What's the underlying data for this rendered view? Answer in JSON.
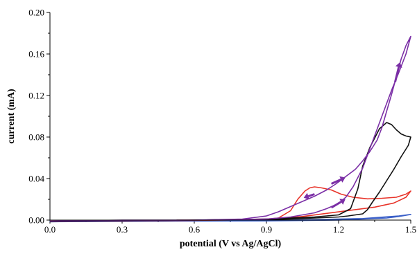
{
  "chart_data": {
    "type": "line",
    "title": "",
    "xlabel": "potential (V vs Ag/AgCl)",
    "ylabel": "current (mA)",
    "xlim": [
      0.0,
      1.5
    ],
    "ylim": [
      0.0,
      0.2
    ],
    "x_ticks": [
      "0.0",
      "0.3",
      "0.6",
      "0.9",
      "1.2",
      "1.5"
    ],
    "y_ticks": [
      "0.00",
      "0.04",
      "0.08",
      "0.12",
      "0.16",
      "0.20"
    ],
    "grid": false,
    "legend": "none",
    "series": [
      {
        "color": "#3a5fc8",
        "x": [
          0.0,
          0.3,
          0.6,
          0.9,
          1.2,
          1.3,
          1.4,
          1.45,
          1.5,
          1.45,
          1.3,
          1.0,
          0.6,
          0.3,
          0.0,
          0.0
        ],
        "y": [
          -0.0015,
          -0.0012,
          -0.001,
          -0.0008,
          0.0,
          0.001,
          0.002,
          0.0035,
          0.0055,
          0.004,
          0.0015,
          0.0,
          -0.0005,
          -0.0008,
          -0.0012,
          -0.0015
        ]
      },
      {
        "color": "#e8342a",
        "x": [
          0.0,
          0.3,
          0.6,
          0.9,
          0.95,
          1.0,
          1.03,
          1.06,
          1.08,
          1.1,
          1.13,
          1.17,
          1.21,
          1.26,
          1.32,
          1.38,
          1.44,
          1.48,
          1.5,
          1.48,
          1.43,
          1.35,
          1.25,
          1.15,
          1.05,
          0.95,
          0.85,
          0.7,
          0.5,
          0.3,
          0.0
        ],
        "y": [
          -0.001,
          -0.0005,
          0.0,
          0.001,
          0.002,
          0.009,
          0.02,
          0.028,
          0.031,
          0.032,
          0.031,
          0.029,
          0.025,
          0.022,
          0.0205,
          0.021,
          0.022,
          0.025,
          0.028,
          0.022,
          0.0165,
          0.0125,
          0.0095,
          0.0065,
          0.0035,
          0.0015,
          0.0005,
          0.0,
          -0.0005,
          -0.001,
          -0.001
        ]
      },
      {
        "color": "#111111",
        "x": [
          0.0,
          0.3,
          0.6,
          0.9,
          1.0,
          1.1,
          1.2,
          1.25,
          1.28,
          1.3,
          1.33,
          1.37,
          1.4,
          1.42,
          1.44,
          1.46,
          1.48,
          1.5,
          1.49,
          1.46,
          1.43,
          1.4,
          1.37,
          1.34,
          1.32,
          1.3,
          1.27,
          1.24,
          1.2,
          1.1,
          1.0,
          0.9,
          0.6,
          0.3,
          0.0
        ],
        "y": [
          -0.0015,
          -0.001,
          0.0,
          0.001,
          0.002,
          0.003,
          0.005,
          0.011,
          0.03,
          0.052,
          0.07,
          0.088,
          0.094,
          0.092,
          0.087,
          0.083,
          0.081,
          0.08,
          0.072,
          0.061,
          0.049,
          0.038,
          0.027,
          0.017,
          0.01,
          0.006,
          0.005,
          0.004,
          0.003,
          0.002,
          0.001,
          0.0005,
          0.0,
          -0.0005,
          -0.0015
        ]
      },
      {
        "color": "#7b2fa6",
        "x": [
          0.0,
          0.3,
          0.6,
          0.9,
          1.0,
          1.1,
          1.15,
          1.2,
          1.23,
          1.26,
          1.3,
          1.34,
          1.38,
          1.42,
          1.45,
          1.48,
          1.5,
          1.48,
          1.46,
          1.44,
          1.42,
          1.4,
          1.38,
          1.36,
          1.33,
          1.3,
          1.27,
          1.23,
          1.19,
          1.15,
          1.1,
          1.05,
          1.0,
          0.95,
          0.9,
          0.8,
          0.6,
          0.3,
          0.0
        ],
        "y": [
          -0.001,
          0.0,
          0.0,
          0.001,
          0.003,
          0.007,
          0.011,
          0.016,
          0.022,
          0.032,
          0.05,
          0.075,
          0.1,
          0.125,
          0.142,
          0.16,
          0.177,
          0.168,
          0.155,
          0.138,
          0.121,
          0.105,
          0.089,
          0.077,
          0.066,
          0.057,
          0.049,
          0.042,
          0.035,
          0.029,
          0.023,
          0.018,
          0.013,
          0.008,
          0.004,
          0.001,
          0.0,
          -0.0005,
          -0.001
        ]
      }
    ],
    "arrows": [
      {
        "color": "#7b2fa6",
        "from": [
          1.1,
          0.025
        ],
        "to": [
          1.055,
          0.0215
        ]
      },
      {
        "color": "#7b2fa6",
        "from": [
          1.17,
          0.035
        ],
        "to": [
          1.228,
          0.041
        ]
      },
      {
        "color": "#7b2fa6",
        "from": [
          1.17,
          0.012
        ],
        "to": [
          1.228,
          0.02
        ]
      },
      {
        "color": "#7b2fa6",
        "from": [
          1.435,
          0.133
        ],
        "to": [
          1.455,
          0.152
        ]
      }
    ]
  }
}
